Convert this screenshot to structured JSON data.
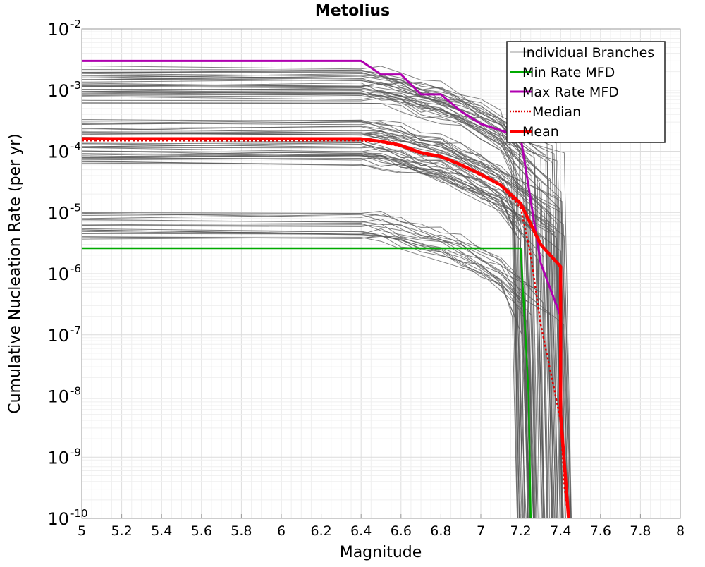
{
  "chart_data": {
    "type": "line",
    "title": "Metolius",
    "xlabel": "Magnitude",
    "ylabel": "Cumulative Nucleation Rate (per yr)",
    "xlim": [
      5,
      8
    ],
    "ylim": [
      1e-10,
      0.01
    ],
    "yscale": "log",
    "grid": true,
    "legend_position": "top-right",
    "x_ticks": [
      "5",
      "5.2",
      "5.4",
      "5.6",
      "5.8",
      "6",
      "6.2",
      "6.4",
      "6.6",
      "6.8",
      "7",
      "7.2",
      "7.4",
      "7.6",
      "7.8",
      "8"
    ],
    "y_ticks": [
      {
        "base": "10",
        "exp": "-2",
        "value": 0.01
      },
      {
        "base": "10",
        "exp": "-3",
        "value": 0.001
      },
      {
        "base": "10",
        "exp": "-4",
        "value": 0.0001
      },
      {
        "base": "10",
        "exp": "-5",
        "value": 1e-05
      },
      {
        "base": "10",
        "exp": "-6",
        "value": 1e-06
      },
      {
        "base": "10",
        "exp": "-7",
        "value": 1e-07
      },
      {
        "base": "10",
        "exp": "-8",
        "value": 1e-08
      },
      {
        "base": "10",
        "exp": "-9",
        "value": 1e-09
      },
      {
        "base": "10",
        "exp": "-10",
        "value": 1e-10
      }
    ],
    "colors": {
      "branches": "#555555",
      "min": "#00aa00",
      "max": "#b000b0",
      "median": "#e00000",
      "mean": "#ff0000"
    },
    "branch_groups": [
      {
        "rate_low": 0.0006,
        "rate_high": 0.0025,
        "count": 34
      },
      {
        "rate_low": 5.5e-05,
        "rate_high": 0.00033,
        "count": 40
      },
      {
        "rate_low": 3.5e-06,
        "rate_high": 1.05e-05,
        "count": 18
      }
    ],
    "series": [
      {
        "name": "Individual Branches",
        "style": "thin-gray"
      },
      {
        "name": "Min Rate MFD",
        "style": "solid-green",
        "x": [
          5.0,
          7.19,
          7.2,
          7.24,
          7.25
        ],
        "y": [
          2.6e-06,
          2.6e-06,
          2.6e-06,
          1e-08,
          1e-10
        ]
      },
      {
        "name": "Max Rate MFD",
        "style": "solid-magenta",
        "x": [
          5.0,
          6.4,
          6.5,
          6.6,
          6.7,
          6.8,
          6.9,
          7.0,
          7.1,
          7.2,
          7.3,
          7.4
        ],
        "y": [
          0.003,
          0.003,
          0.0018,
          0.0018,
          0.00085,
          0.00085,
          0.00045,
          0.00028,
          0.00022,
          0.00017,
          1.5e-06,
          2e-07
        ]
      },
      {
        "name": "Median",
        "style": "dotted-red",
        "x": [
          5.0,
          6.4,
          6.5,
          6.6,
          6.7,
          6.8,
          6.9,
          7.0,
          7.1,
          7.2,
          7.25,
          7.3,
          7.4,
          7.42,
          7.44
        ],
        "y": [
          0.00015,
          0.00015,
          0.00014,
          0.00012,
          9e-05,
          8e-05,
          6e-05,
          4e-05,
          2.7e-05,
          1.2e-05,
          2e-06,
          1.5e-07,
          4e-09,
          3e-10,
          1e-10
        ]
      },
      {
        "name": "Mean",
        "style": "thick-red",
        "x": [
          5.0,
          6.4,
          6.5,
          6.6,
          6.7,
          6.8,
          6.9,
          7.0,
          7.1,
          7.2,
          7.3,
          7.4,
          7.4,
          7.44
        ],
        "y": [
          0.00016,
          0.00016,
          0.000145,
          0.000125,
          9.5e-05,
          8.2e-05,
          6e-05,
          4.2e-05,
          2.8e-05,
          1.4e-05,
          3e-06,
          1.3e-06,
          5e-09,
          1e-10
        ]
      }
    ]
  }
}
